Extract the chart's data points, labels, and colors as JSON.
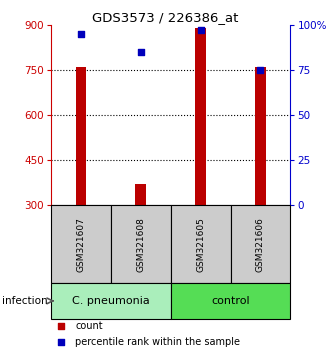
{
  "title": "GDS3573 / 226386_at",
  "samples": [
    "GSM321607",
    "GSM321608",
    "GSM321605",
    "GSM321606"
  ],
  "counts": [
    760,
    370,
    890,
    760
  ],
  "percentiles": [
    95,
    85,
    97,
    75
  ],
  "ylim_left": [
    300,
    900
  ],
  "yticks_left": [
    300,
    450,
    600,
    750,
    900
  ],
  "ylim_right": [
    0,
    100
  ],
  "yticks_right": [
    0,
    25,
    50,
    75,
    100
  ],
  "bar_color": "#bb0000",
  "dot_color": "#0000bb",
  "bar_width": 0.18,
  "groups": [
    {
      "label": "C. pneumonia",
      "samples": [
        0,
        1
      ],
      "color": "#aaeebb"
    },
    {
      "label": "control",
      "samples": [
        2,
        3
      ],
      "color": "#55dd55"
    }
  ],
  "group_label": "infection",
  "legend_count_label": "count",
  "legend_pct_label": "percentile rank within the sample",
  "sample_box_color": "#cccccc",
  "left_axis_color": "#cc0000",
  "right_axis_color": "#0000cc",
  "grid_yticks": [
    450,
    600,
    750
  ]
}
